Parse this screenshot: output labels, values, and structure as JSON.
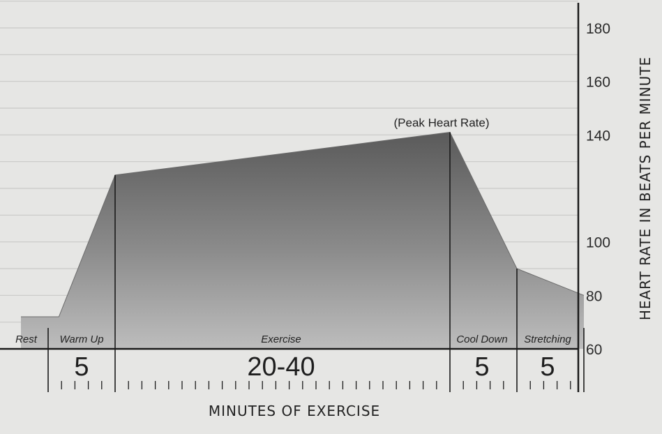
{
  "chart_data": {
    "type": "area",
    "title": "",
    "xlabel": "MINUTES OF EXERCISE",
    "ylabel": "HEART RATE IN BEATS PER MINUTE",
    "ylim": [
      60,
      190
    ],
    "yticks": [
      60,
      80,
      100,
      140,
      160,
      180
    ],
    "grid": true,
    "points": [
      {
        "x": 0,
        "y": 72
      },
      {
        "x": 0.8,
        "y": 72
      },
      {
        "x": 5,
        "y": 125
      },
      {
        "x": 30,
        "y": 141
      },
      {
        "x": 35,
        "y": 90
      },
      {
        "x": 40,
        "y": 80
      }
    ],
    "annotation": {
      "text": "(Peak Heart Rate)",
      "x": 30,
      "y": 141
    },
    "phases": [
      {
        "label": "Rest",
        "duration": ""
      },
      {
        "label": "Warm Up",
        "duration": "5"
      },
      {
        "label": "Exercise",
        "duration": "20-40"
      },
      {
        "label": "Cool Down",
        "duration": "5"
      },
      {
        "label": "Stretching",
        "duration": "5"
      }
    ]
  }
}
